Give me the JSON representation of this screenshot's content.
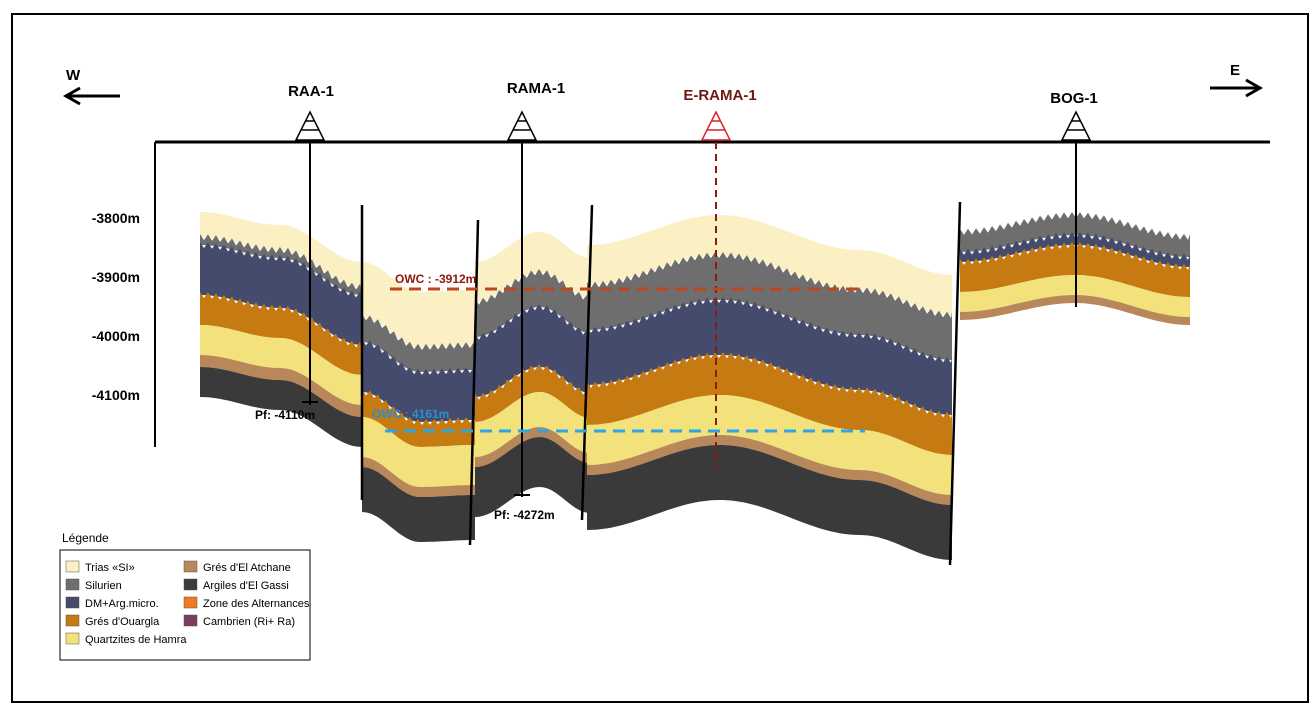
{
  "directions": {
    "west": "W",
    "east": "E"
  },
  "wells": [
    {
      "label": "RAA-1"
    },
    {
      "label": "RAMA-1"
    },
    {
      "label": "E-RAMA-1"
    },
    {
      "label": "BOG-1"
    }
  ],
  "depth_labels": [
    "-3800m",
    "-3900m",
    "-4000m",
    "-4100m"
  ],
  "annotations": {
    "owc_upper": "OWC : -3912m",
    "owc_lower": "OWC : 4161m",
    "pf_raa": "Pf: -4110m",
    "pf_rama": "Pf: -4272m"
  },
  "legend": {
    "title": "Légende",
    "items": [
      {
        "label": "Trias «SI»",
        "color": "#fbefc4"
      },
      {
        "label": "Silurien",
        "color": "#6e6e6e"
      },
      {
        "label": "DM+Arg.micro.",
        "color": "#454b6d"
      },
      {
        "label": "Grés d'Ouargla",
        "color": "#c57b12"
      },
      {
        "label": "Quartzites de Hamra",
        "color": "#f3e27b"
      },
      {
        "label": "Grés d'El Atchane",
        "color": "#b8875a"
      },
      {
        "label": "Argiles d'El Gassi",
        "color": "#3a3a3a"
      },
      {
        "label": "Zone des Alternances",
        "color": "#f07a22"
      },
      {
        "label": "Cambrien (Ri+ Ra)",
        "color": "#7a3e5e"
      }
    ]
  }
}
